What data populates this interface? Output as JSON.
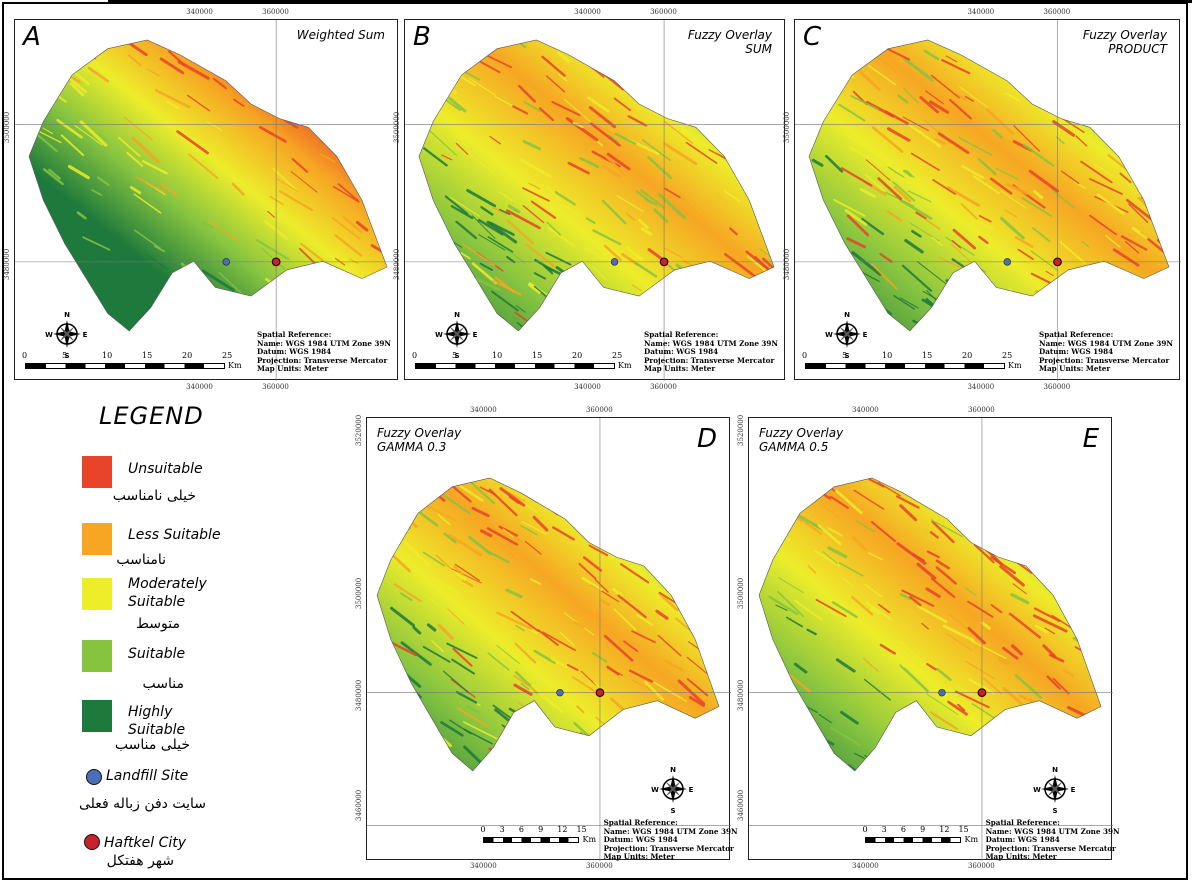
{
  "colors": {
    "unsuitable": "#e8442a",
    "less_suitable": "#f6a623",
    "moderately_suitable": "#eded2a",
    "suitable": "#86c440",
    "highly_suitable": "#1e7a3c",
    "landfill": "#4a6fb8",
    "city": "#c8232b"
  },
  "panels": [
    {
      "id": "A",
      "label": "A",
      "title": [
        "Weighted Sum"
      ]
    },
    {
      "id": "B",
      "label": "B",
      "title": [
        "Fuzzy Overlay",
        "SUM"
      ]
    },
    {
      "id": "C",
      "label": "C",
      "title": [
        "Fuzzy Overlay",
        "PRODUCT"
      ]
    },
    {
      "id": "D",
      "label": "D",
      "title": [
        "Fuzzy Overlay",
        "GAMMA 0.3"
      ]
    },
    {
      "id": "E",
      "label": "E",
      "title": [
        "Fuzzy Overlay",
        "GAMMA 0.5"
      ]
    }
  ],
  "coords": {
    "x1": "340000",
    "x2": "360000",
    "y_top_de": "3520000",
    "y1": "3500000",
    "y2": "3480000",
    "y3": "3460000"
  },
  "spatial_reference": {
    "heading": "Spatial Reference:",
    "name": "Name: WGS 1984 UTM Zone 39N",
    "datum": "Datum: WGS 1984",
    "projection": "Projection: Transverse Mercator",
    "units": "Map Units: Meter"
  },
  "scale_abc": {
    "ticks": [
      "0",
      "5",
      "10",
      "15",
      "20",
      "25"
    ],
    "unit": "Km"
  },
  "scale_de": {
    "ticks": [
      "0",
      "3",
      "6",
      "9",
      "12",
      "15"
    ],
    "unit": "Km"
  },
  "compass": {
    "n": "N",
    "s": "S",
    "e": "E",
    "w": "W"
  },
  "legend": {
    "title": "LEGEND",
    "items": [
      {
        "label": "Unsuitable",
        "fa": "خیلی نامناسب",
        "color_key": "unsuitable",
        "type": "swatch"
      },
      {
        "label": "Less Suitable",
        "fa": "نامناسب",
        "color_key": "less_suitable",
        "type": "swatch"
      },
      {
        "label": "Moderately Suitable",
        "fa": "متوسط",
        "color_key": "moderately_suitable",
        "type": "swatch"
      },
      {
        "label": "Suitable",
        "fa": "مناسب",
        "color_key": "suitable",
        "type": "swatch"
      },
      {
        "label": "Highly Suitable",
        "fa": "خیلی مناسب",
        "color_key": "highly_suitable",
        "type": "swatch"
      },
      {
        "label": "Landfill Site",
        "fa": "سایت دفن زباله فعلی",
        "color_key": "landfill",
        "type": "point"
      },
      {
        "label": "Haftkel City",
        "fa": "شهر هفتکل",
        "color_key": "city",
        "type": "point"
      }
    ]
  }
}
